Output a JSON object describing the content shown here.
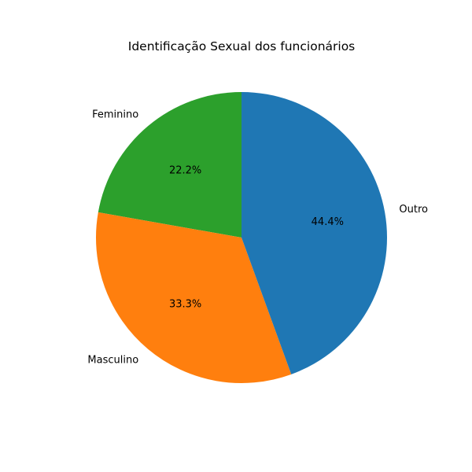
{
  "chart_data": {
    "type": "pie",
    "title": "Identificação Sexual dos funcionários",
    "slices": [
      {
        "label": "Feminino",
        "value": 22.2,
        "pct_label": "22.2%",
        "color": "#2ca02c"
      },
      {
        "label": "Masculino",
        "value": 33.3,
        "pct_label": "33.3%",
        "color": "#ff7f0e"
      },
      {
        "label": "Outro",
        "value": 44.4,
        "pct_label": "44.4%",
        "color": "#1f77b4"
      }
    ]
  }
}
